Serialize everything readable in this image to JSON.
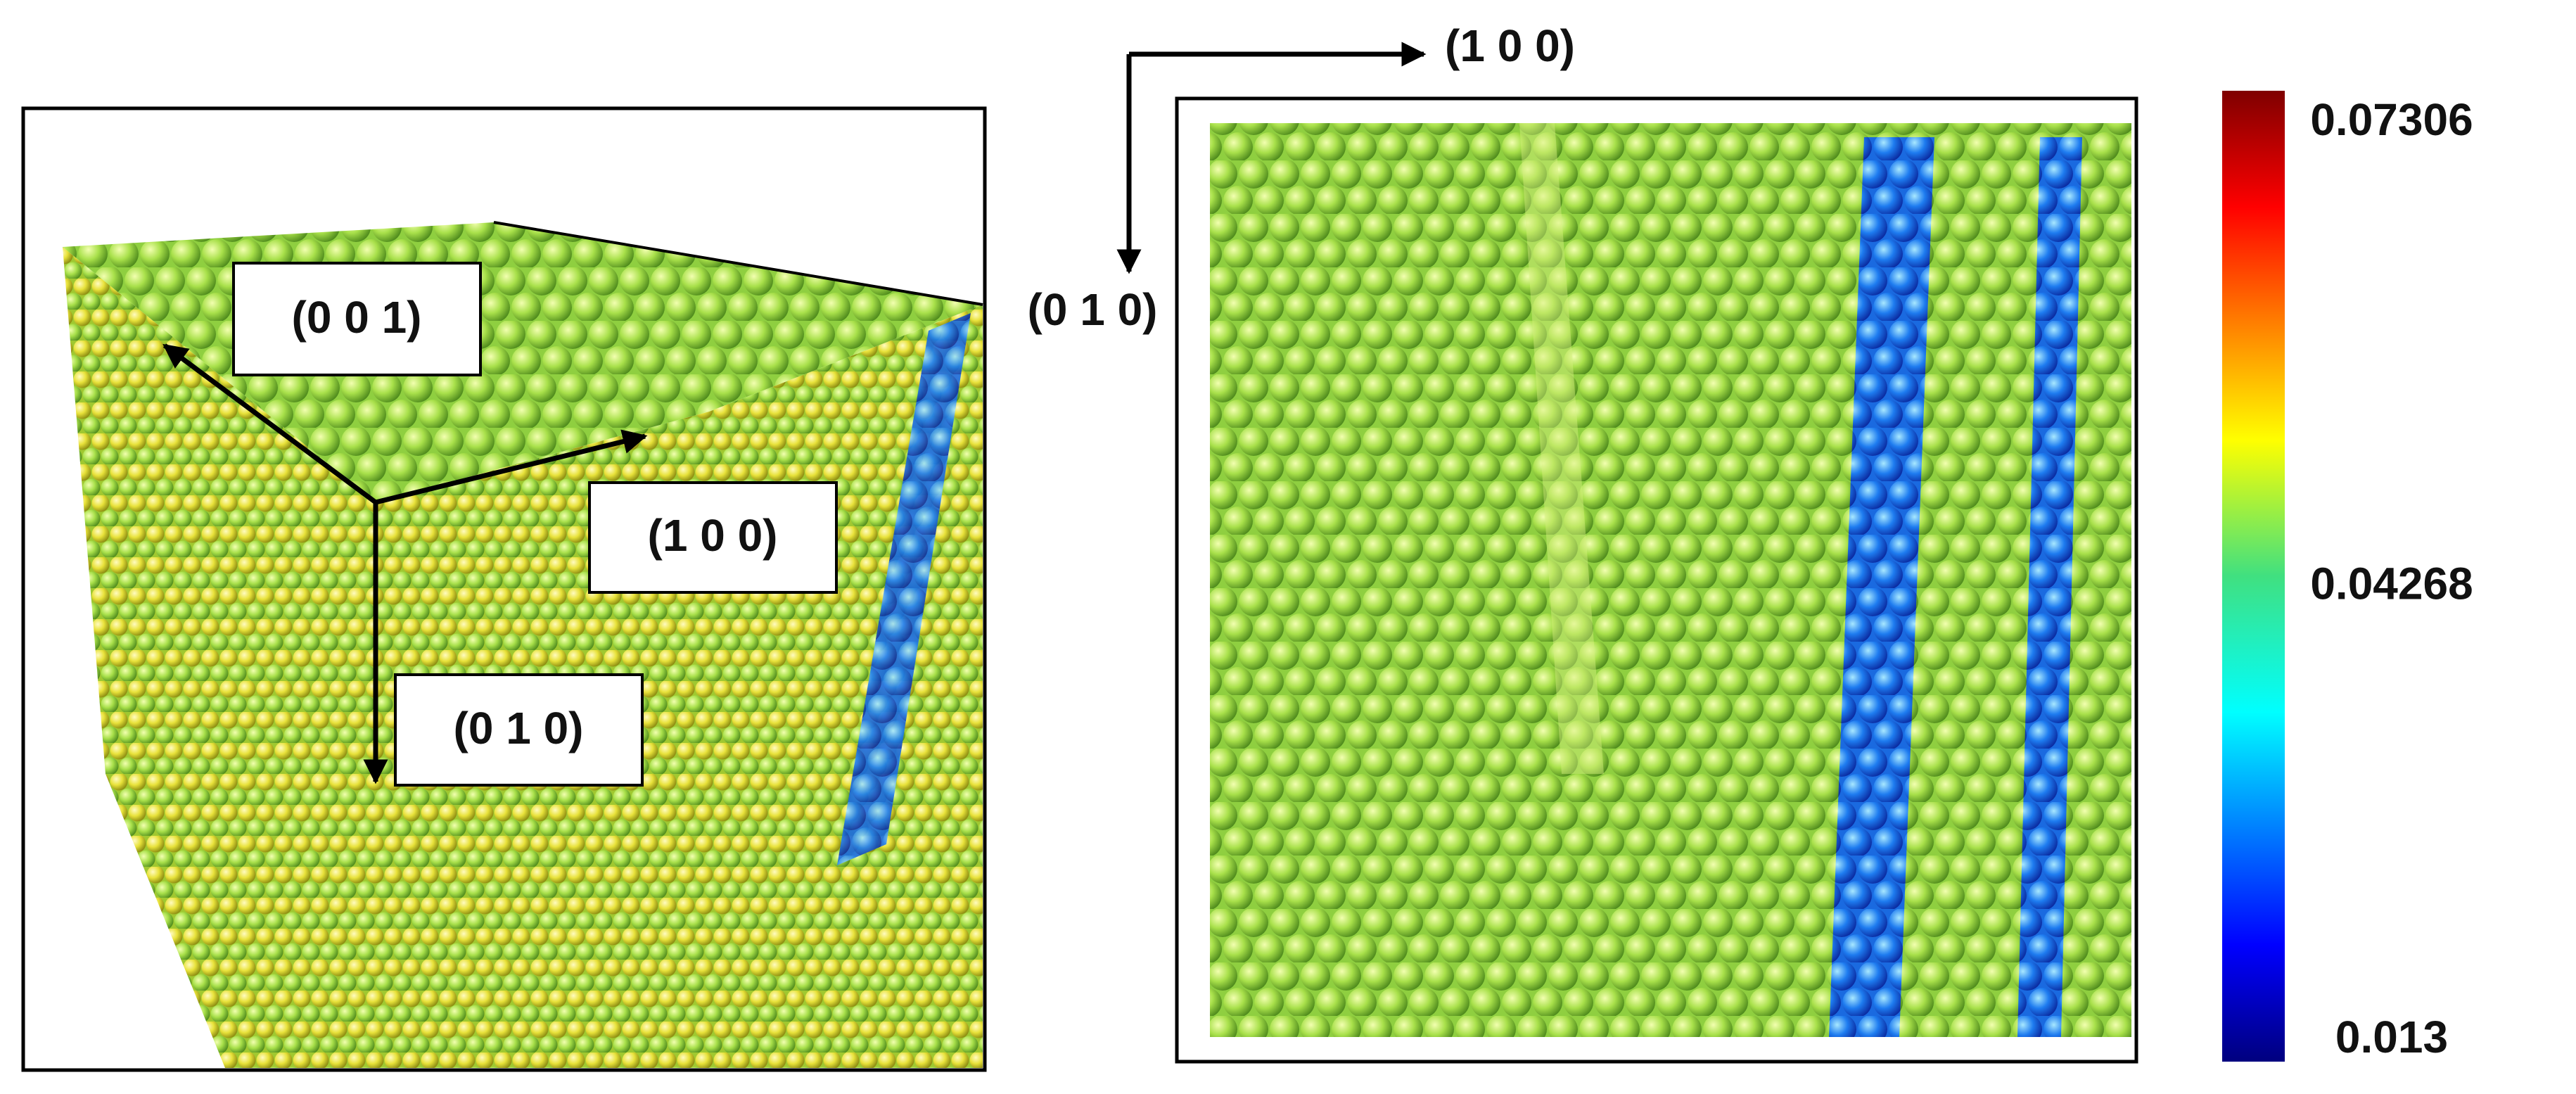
{
  "left_panel": {
    "labels": [
      "(0 0 1)",
      "(1 0 0)",
      "(0 1 0)"
    ]
  },
  "right_panel": {
    "labels": [
      "(1 0 0)",
      "(0 1 0)"
    ]
  },
  "colorbar": {
    "range": [
      0.013,
      0.07306
    ],
    "ticks": [
      0.07306,
      0.04268,
      0.013
    ]
  }
}
